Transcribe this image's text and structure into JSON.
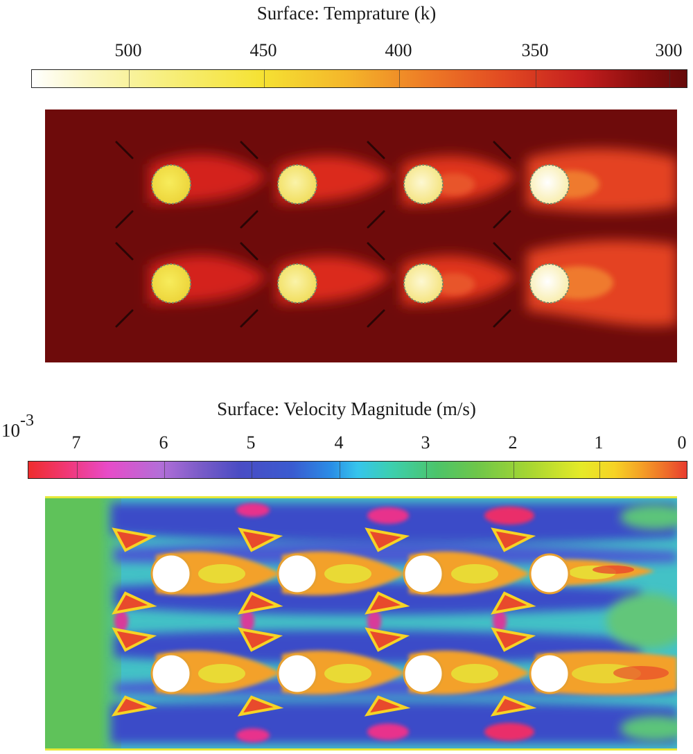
{
  "temperature": {
    "title": "Surface: Temprature (k)",
    "ticks": [
      "500",
      "450",
      "400",
      "350",
      "300"
    ],
    "colors": {
      "background": "#6e0b0b",
      "wake": "#e0301e",
      "hot": "#f4e24a",
      "hottest": "#fffbe8"
    }
  },
  "velocity": {
    "title": "Surface: Velocity Magnitude (m/s)",
    "exponent_base": "10",
    "exponent_power": "-3",
    "ticks": [
      "7",
      "6",
      "5",
      "4",
      "3",
      "2",
      "1",
      "0"
    ],
    "colors": {
      "inlet": "#5fc25a",
      "blue": "#3848c8",
      "cyan": "#3ec8ee",
      "magenta": "#e8308c",
      "wake": "#f3a12a",
      "core": "#e73a2c",
      "yellow": "#f2e52c"
    }
  }
}
